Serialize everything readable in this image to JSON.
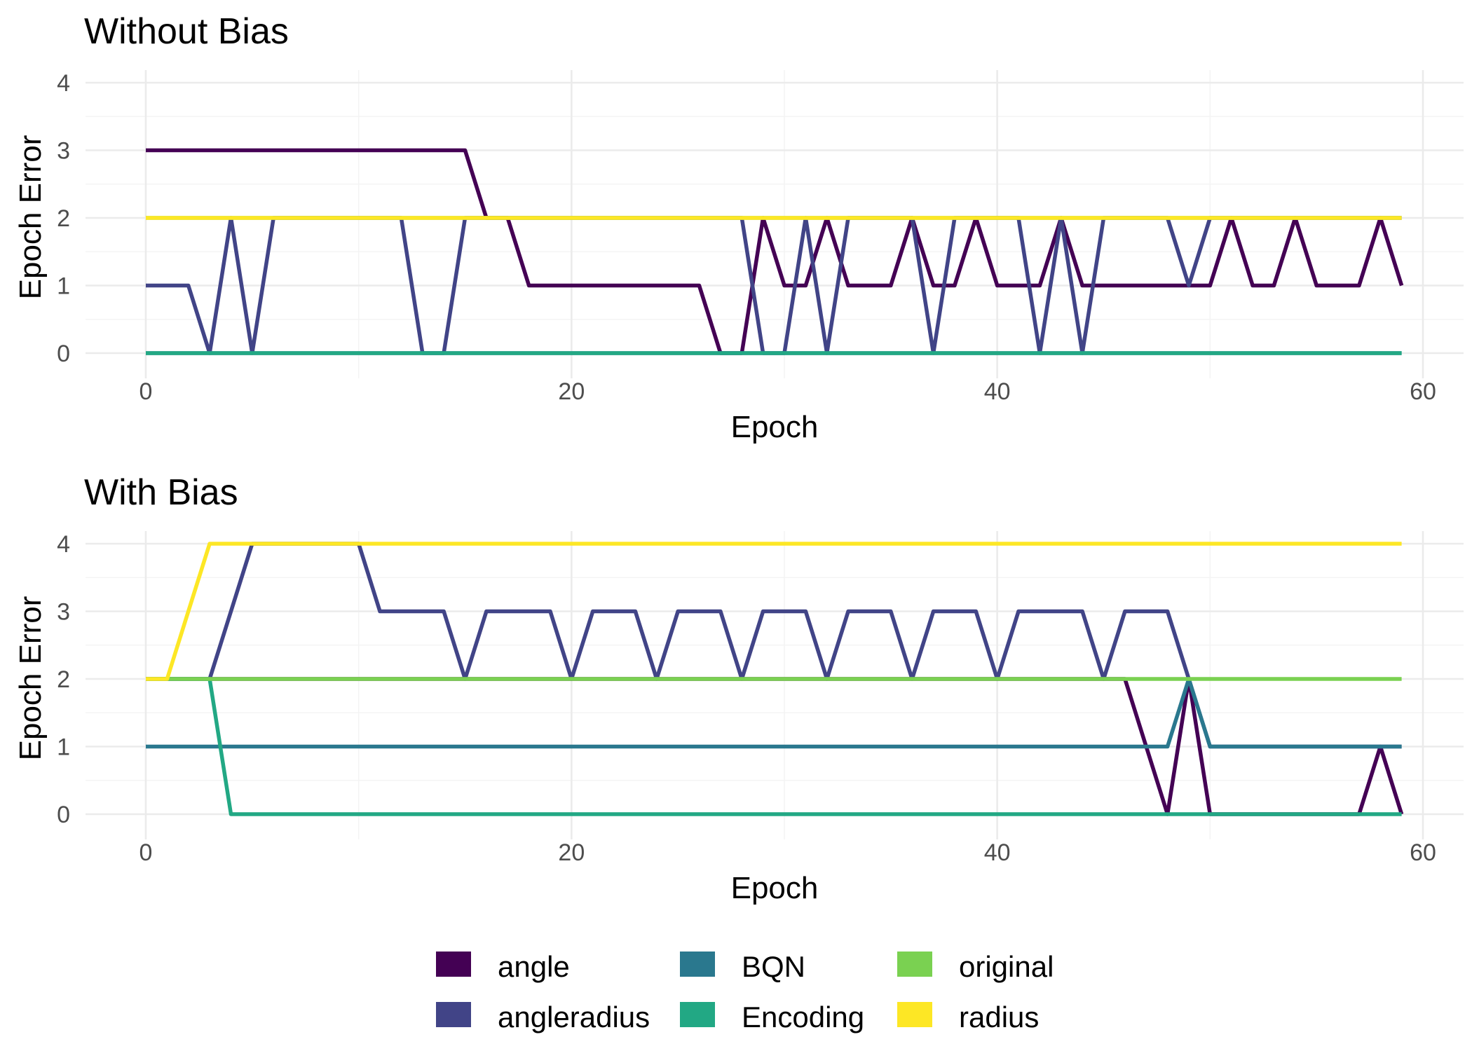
{
  "chart_data": [
    {
      "type": "line",
      "title": "Without Bias",
      "xlabel": "Epoch",
      "ylabel": "Epoch Error",
      "xlim": [
        0,
        60
      ],
      "ylim": [
        0,
        4
      ],
      "x_ticks": [
        "0",
        "20",
        "40",
        "60"
      ],
      "y_ticks": [
        "0",
        "1",
        "2",
        "3",
        "4"
      ],
      "grid": true,
      "x": [
        0,
        1,
        2,
        3,
        4,
        5,
        6,
        7,
        8,
        9,
        10,
        11,
        12,
        13,
        14,
        15,
        16,
        17,
        18,
        19,
        20,
        21,
        22,
        23,
        24,
        25,
        26,
        27,
        28,
        29,
        30,
        31,
        32,
        33,
        34,
        35,
        36,
        37,
        38,
        39,
        40,
        41,
        42,
        43,
        44,
        45,
        46,
        47,
        48,
        49,
        50,
        51,
        52,
        53,
        54,
        55,
        56,
        57,
        58,
        59
      ],
      "series": [
        {
          "name": "angle",
          "color": "#440154",
          "values": [
            3,
            3,
            3,
            3,
            3,
            3,
            3,
            3,
            3,
            3,
            3,
            3,
            3,
            3,
            3,
            3,
            2,
            2,
            1,
            1,
            1,
            1,
            1,
            1,
            1,
            1,
            1,
            0,
            0,
            2,
            1,
            1,
            2,
            1,
            1,
            1,
            2,
            1,
            1,
            2,
            1,
            1,
            1,
            2,
            1,
            1,
            1,
            1,
            1,
            1,
            1,
            2,
            1,
            1,
            2,
            1,
            1,
            1,
            2,
            1
          ]
        },
        {
          "name": "angleradius",
          "color": "#414487",
          "values": [
            1,
            1,
            1,
            0,
            2,
            0,
            2,
            2,
            2,
            2,
            2,
            2,
            2,
            0,
            0,
            2,
            2,
            2,
            2,
            2,
            2,
            2,
            2,
            2,
            2,
            2,
            2,
            2,
            2,
            0,
            0,
            2,
            0,
            2,
            2,
            2,
            2,
            0,
            2,
            2,
            2,
            2,
            0,
            2,
            0,
            2,
            2,
            2,
            2,
            1,
            2,
            2,
            2,
            2,
            2,
            2,
            2,
            2,
            2,
            2
          ]
        },
        {
          "name": "BQN",
          "color": "#2a788e",
          "values": [
            0,
            0,
            0,
            0,
            0,
            0,
            0,
            0,
            0,
            0,
            0,
            0,
            0,
            0,
            0,
            0,
            0,
            0,
            0,
            0,
            0,
            0,
            0,
            0,
            0,
            0,
            0,
            0,
            0,
            0,
            0,
            0,
            0,
            0,
            0,
            0,
            0,
            0,
            0,
            0,
            0,
            0,
            0,
            0,
            0,
            0,
            0,
            0,
            0,
            0,
            0,
            0,
            0,
            0,
            0,
            0,
            0,
            0,
            0,
            0
          ]
        },
        {
          "name": "Encoding",
          "color": "#22a884",
          "values": [
            0,
            0,
            0,
            0,
            0,
            0,
            0,
            0,
            0,
            0,
            0,
            0,
            0,
            0,
            0,
            0,
            0,
            0,
            0,
            0,
            0,
            0,
            0,
            0,
            0,
            0,
            0,
            0,
            0,
            0,
            0,
            0,
            0,
            0,
            0,
            0,
            0,
            0,
            0,
            0,
            0,
            0,
            0,
            0,
            0,
            0,
            0,
            0,
            0,
            0,
            0,
            0,
            0,
            0,
            0,
            0,
            0,
            0,
            0,
            0
          ]
        },
        {
          "name": "original",
          "color": "#7ad151",
          "values": [
            2,
            2,
            2,
            2,
            2,
            2,
            2,
            2,
            2,
            2,
            2,
            2,
            2,
            2,
            2,
            2,
            2,
            2,
            2,
            2,
            2,
            2,
            2,
            2,
            2,
            2,
            2,
            2,
            2,
            2,
            2,
            2,
            2,
            2,
            2,
            2,
            2,
            2,
            2,
            2,
            2,
            2,
            2,
            2,
            2,
            2,
            2,
            2,
            2,
            2,
            2,
            2,
            2,
            2,
            2,
            2,
            2,
            2,
            2,
            2
          ]
        },
        {
          "name": "radius",
          "color": "#fde725",
          "values": [
            2,
            2,
            2,
            2,
            2,
            2,
            2,
            2,
            2,
            2,
            2,
            2,
            2,
            2,
            2,
            2,
            2,
            2,
            2,
            2,
            2,
            2,
            2,
            2,
            2,
            2,
            2,
            2,
            2,
            2,
            2,
            2,
            2,
            2,
            2,
            2,
            2,
            2,
            2,
            2,
            2,
            2,
            2,
            2,
            2,
            2,
            2,
            2,
            2,
            2,
            2,
            2,
            2,
            2,
            2,
            2,
            2,
            2,
            2,
            2
          ]
        }
      ]
    },
    {
      "type": "line",
      "title": "With Bias",
      "xlabel": "Epoch",
      "ylabel": "Epoch Error",
      "xlim": [
        0,
        60
      ],
      "ylim": [
        0,
        4
      ],
      "x_ticks": [
        "0",
        "20",
        "40",
        "60"
      ],
      "y_ticks": [
        "0",
        "1",
        "2",
        "3",
        "4"
      ],
      "grid": true,
      "x": [
        0,
        1,
        2,
        3,
        4,
        5,
        6,
        7,
        8,
        9,
        10,
        11,
        12,
        13,
        14,
        15,
        16,
        17,
        18,
        19,
        20,
        21,
        22,
        23,
        24,
        25,
        26,
        27,
        28,
        29,
        30,
        31,
        32,
        33,
        34,
        35,
        36,
        37,
        38,
        39,
        40,
        41,
        42,
        43,
        44,
        45,
        46,
        47,
        48,
        49,
        50,
        51,
        52,
        53,
        54,
        55,
        56,
        57,
        58,
        59
      ],
      "series": [
        {
          "name": "angle",
          "color": "#440154",
          "values": [
            2,
            2,
            2,
            2,
            2,
            2,
            2,
            2,
            2,
            2,
            2,
            2,
            2,
            2,
            2,
            2,
            2,
            2,
            2,
            2,
            2,
            2,
            2,
            2,
            2,
            2,
            2,
            2,
            2,
            2,
            2,
            2,
            2,
            2,
            2,
            2,
            2,
            2,
            2,
            2,
            2,
            2,
            2,
            2,
            2,
            2,
            2,
            1,
            0,
            2,
            0,
            0,
            0,
            0,
            0,
            0,
            0,
            0,
            1,
            0
          ]
        },
        {
          "name": "angleradius",
          "color": "#414487",
          "values": [
            2,
            2,
            2,
            2,
            3,
            4,
            4,
            4,
            4,
            4,
            4,
            3,
            3,
            3,
            3,
            2,
            3,
            3,
            3,
            3,
            2,
            3,
            3,
            3,
            2,
            3,
            3,
            3,
            2,
            3,
            3,
            3,
            2,
            3,
            3,
            3,
            2,
            3,
            3,
            3,
            2,
            3,
            3,
            3,
            3,
            2,
            3,
            3,
            3,
            2,
            1,
            1,
            1,
            1,
            1,
            1,
            1,
            1,
            1,
            1
          ]
        },
        {
          "name": "BQN",
          "color": "#2a788e",
          "values": [
            1,
            1,
            1,
            1,
            1,
            1,
            1,
            1,
            1,
            1,
            1,
            1,
            1,
            1,
            1,
            1,
            1,
            1,
            1,
            1,
            1,
            1,
            1,
            1,
            1,
            1,
            1,
            1,
            1,
            1,
            1,
            1,
            1,
            1,
            1,
            1,
            1,
            1,
            1,
            1,
            1,
            1,
            1,
            1,
            1,
            1,
            1,
            1,
            1,
            2,
            1,
            1,
            1,
            1,
            1,
            1,
            1,
            1,
            1,
            1
          ]
        },
        {
          "name": "Encoding",
          "color": "#22a884",
          "values": [
            2,
            2,
            2,
            2,
            0,
            0,
            0,
            0,
            0,
            0,
            0,
            0,
            0,
            0,
            0,
            0,
            0,
            0,
            0,
            0,
            0,
            0,
            0,
            0,
            0,
            0,
            0,
            0,
            0,
            0,
            0,
            0,
            0,
            0,
            0,
            0,
            0,
            0,
            0,
            0,
            0,
            0,
            0,
            0,
            0,
            0,
            0,
            0,
            0,
            0,
            0,
            0,
            0,
            0,
            0,
            0,
            0,
            0,
            0,
            0
          ]
        },
        {
          "name": "original",
          "color": "#7ad151",
          "values": [
            2,
            2,
            2,
            2,
            2,
            2,
            2,
            2,
            2,
            2,
            2,
            2,
            2,
            2,
            2,
            2,
            2,
            2,
            2,
            2,
            2,
            2,
            2,
            2,
            2,
            2,
            2,
            2,
            2,
            2,
            2,
            2,
            2,
            2,
            2,
            2,
            2,
            2,
            2,
            2,
            2,
            2,
            2,
            2,
            2,
            2,
            2,
            2,
            2,
            2,
            2,
            2,
            2,
            2,
            2,
            2,
            2,
            2,
            2,
            2
          ]
        },
        {
          "name": "radius",
          "color": "#fde725",
          "values": [
            2,
            2,
            3,
            4,
            4,
            4,
            4,
            4,
            4,
            4,
            4,
            4,
            4,
            4,
            4,
            4,
            4,
            4,
            4,
            4,
            4,
            4,
            4,
            4,
            4,
            4,
            4,
            4,
            4,
            4,
            4,
            4,
            4,
            4,
            4,
            4,
            4,
            4,
            4,
            4,
            4,
            4,
            4,
            4,
            4,
            4,
            4,
            4,
            4,
            4,
            4,
            4,
            4,
            4,
            4,
            4,
            4,
            4,
            4,
            4
          ]
        }
      ]
    }
  ],
  "legend": {
    "position": "bottom",
    "items": [
      {
        "label": "angle",
        "color": "#440154"
      },
      {
        "label": "angleradius",
        "color": "#414487"
      },
      {
        "label": "BQN",
        "color": "#2a788e"
      },
      {
        "label": "Encoding",
        "color": "#22a884"
      },
      {
        "label": "original",
        "color": "#7ad151"
      },
      {
        "label": "radius",
        "color": "#fde725"
      }
    ]
  }
}
